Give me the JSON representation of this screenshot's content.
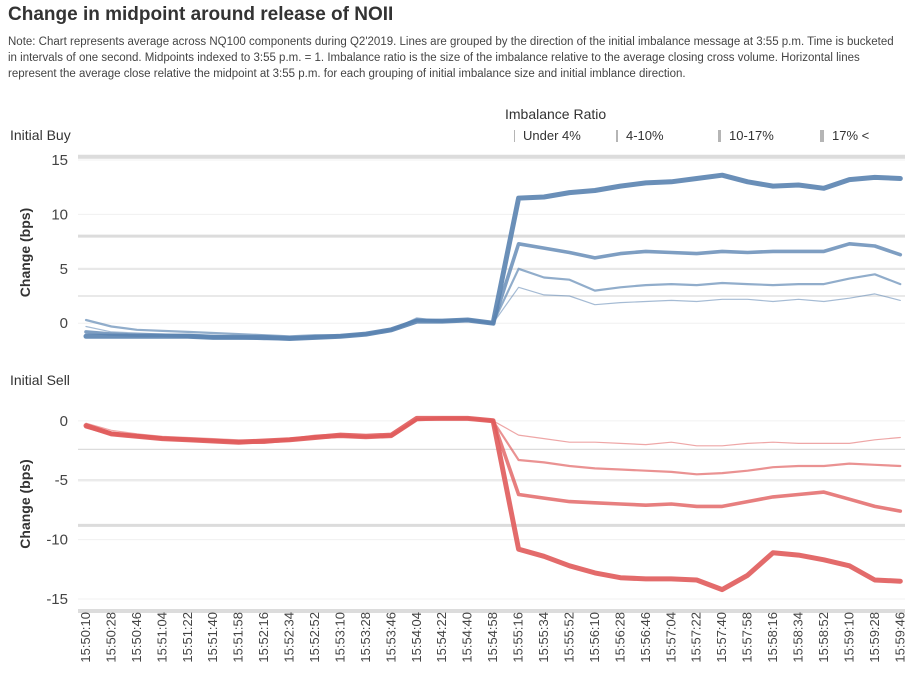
{
  "page": {
    "title": "Change in midpoint around release of NOII",
    "note": "Note: Chart represents average across NQ100 components during Q2'2019. Lines are grouped by the direction of the initial imbalance message at 3:55 p.m. Time is bucketed in intervals of one second. Midpoints indexed to 3:55 p.m. = 1. Imbalance ratio is the size of the imbalance relative to the average closing cross volume. Horizontal lines represent the average close relative the midpoint at 3:55 p.m. for each grouping of initial imbalance size and initial imblance direction."
  },
  "legend": {
    "title": "Imbalance Ratio",
    "items": [
      "Under 4%",
      "4-10%",
      "10-17%",
      "17% <"
    ]
  },
  "chart_data": [
    {
      "type": "line",
      "panel_label": "Initial Buy",
      "ylabel": "Change (bps)",
      "ylim": [
        -2,
        15
      ],
      "yticks": [
        "15",
        "10",
        "5",
        "0"
      ],
      "grid": true,
      "color": "#5b84b1",
      "x": [
        "15:50:10",
        "15:50:28",
        "15:50:46",
        "15:51:04",
        "15:51:22",
        "15:51:40",
        "15:51:58",
        "15:52:16",
        "15:52:34",
        "15:52:52",
        "15:53:10",
        "15:53:28",
        "15:53:46",
        "15:54:04",
        "15:54:22",
        "15:54:40",
        "15:54:58",
        "15:55:16",
        "15:55:34",
        "15:55:52",
        "15:56:10",
        "15:56:28",
        "15:56:46",
        "15:57:04",
        "15:57:22",
        "15:57:40",
        "15:57:58",
        "15:58:16",
        "15:58:34",
        "15:58:52",
        "15:59:10",
        "15:59:28",
        "15:59:46"
      ],
      "reference_lines": [
        {
          "imbalance_ratio": "Under 4%",
          "value": 2.5
        },
        {
          "imbalance_ratio": "4-10%",
          "value": 5
        },
        {
          "imbalance_ratio": "10-17%",
          "value": 8
        },
        {
          "imbalance_ratio": "17% <",
          "value": 15.3
        }
      ],
      "series": [
        {
          "name": "Under 4%",
          "values": [
            -0.3,
            -0.8,
            -0.9,
            -1.0,
            -1.0,
            -1.1,
            -1.2,
            -1.2,
            -1.3,
            -1.2,
            -1.2,
            -1.0,
            -0.6,
            0.5,
            0.2,
            0.3,
            0.0,
            3.3,
            2.6,
            2.5,
            1.7,
            1.9,
            2.0,
            2.1,
            2.0,
            2.2,
            2.2,
            2.0,
            2.2,
            2.0,
            2.3,
            2.7,
            2.1
          ]
        },
        {
          "name": "4-10%",
          "values": [
            0.3,
            -0.3,
            -0.6,
            -0.7,
            -0.8,
            -0.9,
            -1.0,
            -1.1,
            -1.2,
            -1.1,
            -1.1,
            -1.0,
            -0.6,
            0.3,
            0.2,
            0.3,
            0.0,
            5.0,
            4.2,
            4.0,
            3.0,
            3.3,
            3.5,
            3.6,
            3.5,
            3.7,
            3.6,
            3.5,
            3.6,
            3.6,
            4.1,
            4.5,
            3.6
          ]
        },
        {
          "name": "10-17%",
          "values": [
            -0.8,
            -1.0,
            -1.1,
            -1.1,
            -1.2,
            -1.3,
            -1.3,
            -1.4,
            -1.4,
            -1.3,
            -1.2,
            -1.0,
            -0.6,
            0.3,
            0.2,
            0.3,
            0.0,
            7.3,
            6.9,
            6.5,
            6.0,
            6.4,
            6.6,
            6.5,
            6.4,
            6.6,
            6.5,
            6.6,
            6.6,
            6.6,
            7.3,
            7.1,
            6.3
          ]
        },
        {
          "name": "17% <",
          "values": [
            -1.2,
            -1.2,
            -1.2,
            -1.2,
            -1.2,
            -1.3,
            -1.3,
            -1.3,
            -1.4,
            -1.3,
            -1.2,
            -1.0,
            -0.6,
            0.2,
            0.2,
            0.3,
            0.0,
            11.5,
            11.6,
            12.0,
            12.2,
            12.6,
            12.9,
            13.0,
            13.3,
            13.6,
            13.0,
            12.6,
            12.7,
            12.4,
            13.2,
            13.4,
            13.3
          ]
        }
      ]
    },
    {
      "type": "line",
      "panel_label": "Initial Sell",
      "ylabel": "Change (bps)",
      "ylim": [
        -15.5,
        1.5
      ],
      "yticks": [
        "0",
        "-5",
        "-10",
        "-15"
      ],
      "grid": true,
      "color": "#e05c5c",
      "x": [
        "15:50:10",
        "15:50:28",
        "15:50:46",
        "15:51:04",
        "15:51:22",
        "15:51:40",
        "15:51:58",
        "15:52:16",
        "15:52:34",
        "15:52:52",
        "15:53:10",
        "15:53:28",
        "15:53:46",
        "15:54:04",
        "15:54:22",
        "15:54:40",
        "15:54:58",
        "15:55:16",
        "15:55:34",
        "15:55:52",
        "15:56:10",
        "15:56:28",
        "15:56:46",
        "15:57:04",
        "15:57:22",
        "15:57:40",
        "15:57:58",
        "15:58:16",
        "15:58:34",
        "15:58:52",
        "15:59:10",
        "15:59:28",
        "15:59:46"
      ],
      "reference_lines": [
        {
          "imbalance_ratio": "Under 4%",
          "value": -2.4
        },
        {
          "imbalance_ratio": "4-10%",
          "value": -5.0
        },
        {
          "imbalance_ratio": "10-17%",
          "value": -8.8
        },
        {
          "imbalance_ratio": "17% <",
          "value": -16.0
        }
      ],
      "series": [
        {
          "name": "Under 4%",
          "values": [
            -0.2,
            -0.8,
            -1.1,
            -1.3,
            -1.4,
            -1.5,
            -1.6,
            -1.6,
            -1.5,
            -1.2,
            -1.1,
            -1.3,
            -1.1,
            0.1,
            0.2,
            0.3,
            0.0,
            -1.2,
            -1.5,
            -1.8,
            -1.8,
            -1.9,
            -2.0,
            -1.8,
            -2.1,
            -2.1,
            -1.9,
            -1.8,
            -1.9,
            -1.9,
            -1.9,
            -1.6,
            -1.4
          ]
        },
        {
          "name": "4-10%",
          "values": [
            -0.3,
            -1.0,
            -1.2,
            -1.4,
            -1.5,
            -1.6,
            -1.7,
            -1.7,
            -1.5,
            -1.3,
            -1.2,
            -1.3,
            -1.2,
            0.1,
            0.2,
            0.2,
            0.0,
            -3.3,
            -3.5,
            -3.8,
            -4.0,
            -4.1,
            -4.2,
            -4.3,
            -4.5,
            -4.4,
            -4.2,
            -3.9,
            -3.8,
            -3.8,
            -3.6,
            -3.7,
            -3.8
          ]
        },
        {
          "name": "10-17%",
          "values": [
            -0.5,
            -1.1,
            -1.3,
            -1.5,
            -1.6,
            -1.7,
            -1.8,
            -1.8,
            -1.6,
            -1.4,
            -1.3,
            -1.4,
            -1.3,
            0.1,
            0.2,
            0.2,
            0.0,
            -6.2,
            -6.5,
            -6.8,
            -6.9,
            -7.0,
            -7.1,
            -7.0,
            -7.2,
            -7.2,
            -6.8,
            -6.4,
            -6.2,
            -6.0,
            -6.6,
            -7.2,
            -7.6
          ]
        },
        {
          "name": "17% <",
          "values": [
            -0.4,
            -1.1,
            -1.3,
            -1.5,
            -1.6,
            -1.7,
            -1.8,
            -1.7,
            -1.6,
            -1.4,
            -1.2,
            -1.3,
            -1.2,
            0.2,
            0.2,
            0.2,
            0.0,
            -10.8,
            -11.4,
            -12.2,
            -12.8,
            -13.2,
            -13.3,
            -13.3,
            -13.4,
            -14.2,
            -13.0,
            -11.1,
            -11.3,
            -11.7,
            -12.2,
            -13.4,
            -13.5
          ]
        }
      ]
    }
  ]
}
